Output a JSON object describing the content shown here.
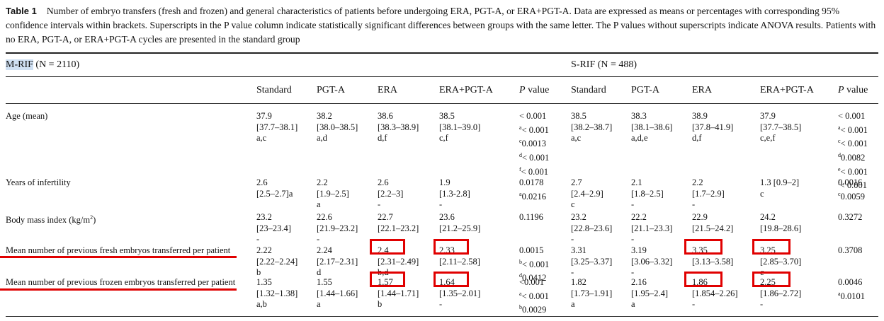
{
  "caption": {
    "label": "Table 1",
    "text": "Number of embryo transfers (fresh and frozen) and general characteristics of patients before undergoing ERA, PGT-A, or ERA+PGT-A. Data are expressed as means or percentages with corresponding 95% confidence intervals within brackets. Superscripts in the P value column indicate statistically significant differences between groups with the same letter. The P values without superscripts indicate ANOVA results. Patients with no ERA, PGT-A, or ERA+PGT-A cycles are presented in the standard group"
  },
  "groups": {
    "mrif_name": "M-RIF",
    "mrif_n": "(N = 2110)",
    "srif_name": "S-RIF",
    "srif_n": "(N = 488)"
  },
  "headers": [
    "Standard",
    "PGT-A",
    "ERA",
    "ERA+PGT-A",
    "P value",
    "Standard",
    "PGT-A",
    "ERA",
    "ERA+PGT-A",
    "P value"
  ],
  "rows": [
    {
      "label": "Age (mean)",
      "cells": [
        [
          "37.9",
          "[37.7–38.1]",
          "a,c"
        ],
        [
          "38.2",
          "[38.0–38.5]",
          "a,d"
        ],
        [
          "38.6",
          "[38.3–38.9]",
          "d,f"
        ],
        [
          "38.5",
          "[38.1–39.0]",
          "c,f"
        ],
        [
          "< 0.001",
          "a< 0.001",
          "c0.0013",
          "d< 0.001",
          "f< 0.001"
        ],
        [
          "38.5",
          "[38.2–38.7]",
          "a,c"
        ],
        [
          "38.3",
          "[38.1–38.6]",
          "a,d,e"
        ],
        [
          "38.9",
          "[37.8–41.9]",
          "d,f"
        ],
        [
          "37.9",
          "[37.7–38.5]",
          "c,e,f"
        ],
        [
          "< 0.001",
          "a< 0.001",
          "c< 0.001",
          "d0.0082",
          "e< 0.001",
          "f< 0.001"
        ]
      ]
    },
    {
      "label": "Years of infertility",
      "cells": [
        [
          "2.6",
          "[2.5–2.7]a"
        ],
        [
          "2.2",
          "[1.9–2.5]",
          "a"
        ],
        [
          "2.6",
          "[2.2–3]",
          "-"
        ],
        [
          "1.9",
          "[1.3-2.8]",
          "-"
        ],
        [
          "0.0178",
          "a0.0216"
        ],
        [
          "2.7",
          "[2.4–2.9]",
          "c"
        ],
        [
          "2.1",
          "[1.8–2.5]",
          "-"
        ],
        [
          "2.2",
          "[1.7–2.9]",
          "-"
        ],
        [
          "1.3 [0.9–2]",
          "c"
        ],
        [
          "0.0016",
          "c0.0059"
        ]
      ]
    },
    {
      "label": "Body mass index (kg/m2)",
      "cells": [
        [
          "23.2",
          "[23–23.4]",
          "-"
        ],
        [
          "22.6",
          "[21.9–23.2]",
          "-"
        ],
        [
          "22.7",
          "[22.1–23.2]",
          "-"
        ],
        [
          "23.6",
          "[21.2–25.9]",
          "-"
        ],
        [
          "0.1196"
        ],
        [
          "23.2",
          "[22.8–23.6]",
          "-"
        ],
        [
          "22.2",
          "[21.1–23.3]",
          "-"
        ],
        [
          "22.9",
          "[21.5–24.2]",
          "-"
        ],
        [
          "24.2",
          "[19.8–28.6]",
          "-"
        ],
        [
          "0.3272"
        ]
      ]
    },
    {
      "label": "Mean number of previous fresh embryos transferred per patient",
      "cells": [
        [
          "2.22",
          "[2.22–2.24]",
          "b"
        ],
        [
          "2.24",
          "[2.17–2.31]",
          "d"
        ],
        [
          "2.4",
          "[2.31–2.49]",
          "b,d"
        ],
        [
          "2.33",
          "[2.11–2.58]",
          "-"
        ],
        [
          "0.0015",
          "b< 0.001",
          "d0.0412"
        ],
        [
          "3.31",
          "[3.25–3.37]",
          "-"
        ],
        [
          "3.19",
          "[3.06–3.32]",
          "-"
        ],
        [
          "3.35",
          "[3.13–3.58]",
          "-"
        ],
        [
          "3.25",
          "[2.85–3.70]",
          "c"
        ],
        [
          "0.3708"
        ]
      ]
    },
    {
      "label": "Mean number of previous frozen embryos transferred per patient",
      "cells": [
        [
          "1.35",
          "[1.32–1.38]",
          "a,b"
        ],
        [
          "1.55",
          "[1.44–1.66]",
          "a"
        ],
        [
          "1.57",
          "[1.44–1.71]",
          "b"
        ],
        [
          "1.64",
          "[1.35–2.01]",
          "-"
        ],
        [
          "<0.001",
          "a< 0.001",
          "b0.0029"
        ],
        [
          "1.82",
          "[1.73–1.91]",
          "a"
        ],
        [
          "2.16",
          "[1.95–2.4]",
          "a"
        ],
        [
          "1.86",
          "[1.854–2.26]",
          "-"
        ],
        [
          "2.25",
          "[1.86–2.72]",
          "-"
        ],
        [
          "0.0046",
          "a0.0101"
        ]
      ]
    }
  ],
  "annotation_color": "#e00000"
}
